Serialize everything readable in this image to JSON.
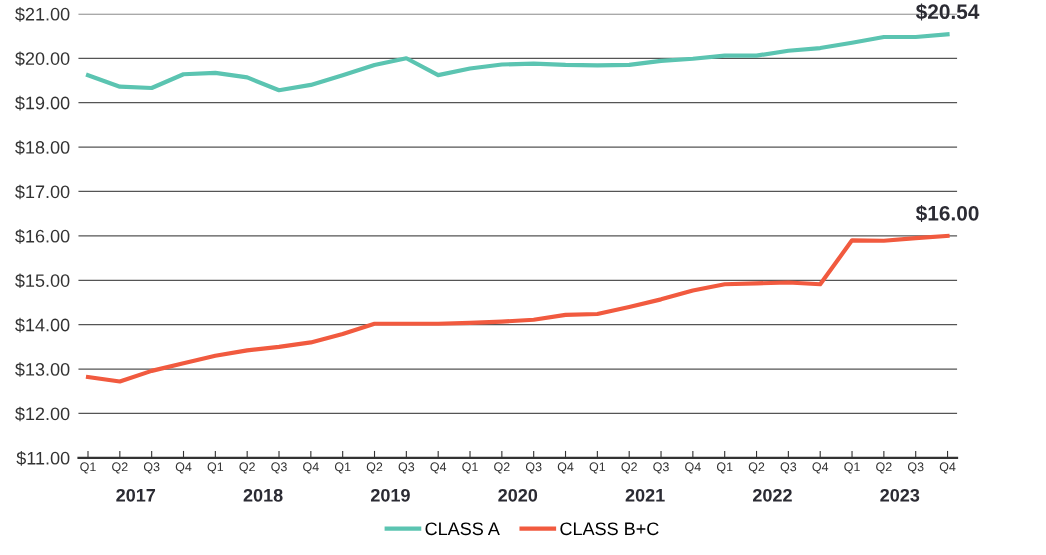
{
  "chart_data": {
    "type": "line",
    "categories": [
      "Q1",
      "Q2",
      "Q3",
      "Q4",
      "Q1",
      "Q2",
      "Q3",
      "Q4",
      "Q1",
      "Q2",
      "Q3",
      "Q4",
      "Q1",
      "Q2",
      "Q3",
      "Q4",
      "Q1",
      "Q2",
      "Q3",
      "Q4",
      "Q1",
      "Q2",
      "Q3",
      "Q4",
      "Q1",
      "Q2",
      "Q3",
      "Q4"
    ],
    "series": [
      {
        "name": "CLASS A",
        "color": "#5bc4b1",
        "values": [
          19.62,
          19.36,
          19.33,
          19.64,
          19.67,
          19.57,
          19.28,
          19.4,
          19.62,
          19.85,
          20.0,
          19.62,
          19.77,
          19.86,
          19.88,
          19.85,
          19.84,
          19.85,
          19.94,
          19.99,
          20.06,
          20.06,
          20.17,
          20.23,
          20.35,
          20.48,
          20.48,
          20.54
        ],
        "value_labels": [
          null,
          null,
          null,
          null,
          null,
          null,
          null,
          null,
          null,
          null,
          null,
          null,
          null,
          null,
          null,
          null,
          null,
          null,
          null,
          null,
          null,
          null,
          null,
          null,
          null,
          null,
          null,
          "$20.54"
        ]
      },
      {
        "name": "CLASS B+C",
        "color": "#f15a3f",
        "values": [
          12.82,
          12.72,
          12.96,
          13.13,
          13.3,
          13.42,
          13.5,
          13.6,
          13.79,
          14.02,
          14.02,
          14.02,
          14.04,
          14.07,
          14.11,
          14.22,
          14.24,
          14.4,
          14.57,
          14.77,
          14.91,
          14.93,
          14.95,
          14.91,
          15.9,
          15.89,
          15.95,
          16.0
        ],
        "value_labels": [
          null,
          null,
          null,
          null,
          null,
          null,
          null,
          null,
          null,
          null,
          null,
          null,
          null,
          null,
          null,
          null,
          null,
          null,
          null,
          null,
          null,
          null,
          null,
          null,
          null,
          null,
          null,
          "$16.00"
        ]
      }
    ],
    "ylim": [
      11,
      21
    ],
    "yticks": [
      {
        "value": 11,
        "label": "$11.00"
      },
      {
        "value": 12,
        "label": "$12.00"
      },
      {
        "value": 13,
        "label": "$13.00"
      },
      {
        "value": 14,
        "label": "$14.00"
      },
      {
        "value": 15,
        "label": "$15.00"
      },
      {
        "value": 16,
        "label": "$16.00"
      },
      {
        "value": 17,
        "label": "$17.00"
      },
      {
        "value": 18,
        "label": "$18.00"
      },
      {
        "value": 19,
        "label": "$19.00"
      },
      {
        "value": 20,
        "label": "$20.00"
      },
      {
        "value": 21,
        "label": "$21.00"
      }
    ],
    "grid": "y",
    "legend": "bottom",
    "marker": "none",
    "line_style": "solid",
    "annotations": [
      "2017",
      "2018",
      "2019",
      "2020",
      "2021",
      "2022",
      "2023"
    ]
  }
}
